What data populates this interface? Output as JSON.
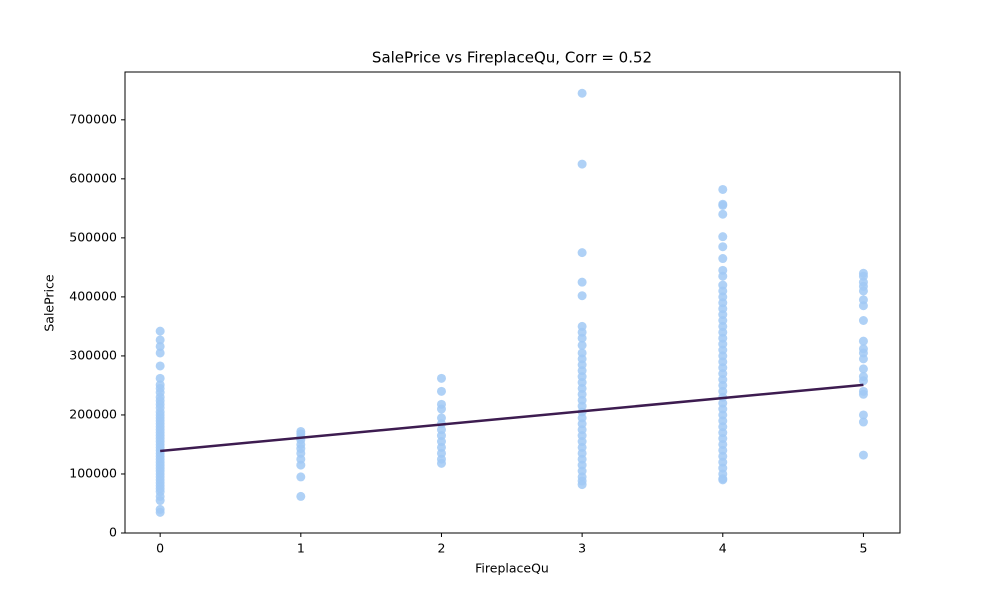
{
  "chart_data": {
    "type": "scatter",
    "title": "SalePrice vs FireplaceQu, Corr = 0.52",
    "x_label": "FireplaceQu",
    "y_label": "SalePrice",
    "xlim": [
      -0.25,
      5.26
    ],
    "ylim": [
      0,
      781000
    ],
    "xticks": [
      0,
      1,
      2,
      3,
      4,
      5
    ],
    "yticks": [
      0,
      100000,
      200000,
      300000,
      400000,
      500000,
      600000,
      700000
    ],
    "color": "#a1c9f4",
    "x": [
      0,
      0,
      0,
      0,
      0,
      0,
      0,
      0,
      0,
      0,
      0,
      0,
      0,
      0,
      0,
      0,
      0,
      0,
      0,
      0,
      0,
      0,
      0,
      0,
      0,
      0,
      0,
      0,
      0,
      0,
      0,
      0,
      0,
      0,
      0,
      0,
      0,
      0,
      0,
      0,
      0,
      0,
      0,
      0,
      0,
      1,
      1,
      1,
      1,
      1,
      1,
      1,
      1,
      1,
      1,
      1,
      2,
      2,
      2,
      2,
      2,
      2,
      2,
      2,
      2,
      2,
      2,
      2,
      2,
      3,
      3,
      3,
      3,
      3,
      3,
      3,
      3,
      3,
      3,
      3,
      3,
      3,
      3,
      3,
      3,
      3,
      3,
      3,
      3,
      3,
      3,
      3,
      3,
      3,
      3,
      3,
      3,
      3,
      3,
      3,
      3,
      3,
      4,
      4,
      4,
      4,
      4,
      4,
      4,
      4,
      4,
      4,
      4,
      4,
      4,
      4,
      4,
      4,
      4,
      4,
      4,
      4,
      4,
      4,
      4,
      4,
      4,
      4,
      4,
      4,
      4,
      4,
      4,
      4,
      4,
      4,
      4,
      4,
      4,
      4,
      4,
      4,
      4,
      4,
      4,
      4,
      5,
      5,
      5,
      5,
      5,
      5,
      5,
      5,
      5,
      5,
      5,
      5,
      5,
      5,
      5,
      5,
      5,
      5,
      5,
      5
    ],
    "values": [
      342000,
      327000,
      316000,
      305000,
      283000,
      262000,
      251000,
      245000,
      238000,
      230000,
      224000,
      218000,
      212000,
      205000,
      200000,
      195000,
      190000,
      185000,
      180000,
      175000,
      170000,
      165000,
      160000,
      155000,
      150000,
      145000,
      140000,
      135000,
      130000,
      125000,
      120000,
      115000,
      110000,
      105000,
      100000,
      95000,
      90000,
      85000,
      80000,
      75000,
      70000,
      62000,
      55000,
      40000,
      35000,
      172000,
      168000,
      163000,
      158000,
      150000,
      143000,
      135000,
      125000,
      115000,
      95000,
      62000,
      262000,
      240000,
      218000,
      210000,
      195000,
      185000,
      175000,
      165000,
      155000,
      145000,
      135000,
      125000,
      118000,
      745000,
      625000,
      475000,
      425000,
      402000,
      350000,
      340000,
      330000,
      318000,
      305000,
      295000,
      285000,
      275000,
      265000,
      255000,
      245000,
      235000,
      225000,
      215000,
      205000,
      195000,
      185000,
      175000,
      165000,
      155000,
      145000,
      135000,
      125000,
      115000,
      105000,
      95000,
      88000,
      82000,
      582000,
      557000,
      555000,
      540000,
      502000,
      485000,
      465000,
      445000,
      435000,
      420000,
      410000,
      400000,
      390000,
      380000,
      370000,
      360000,
      350000,
      340000,
      330000,
      320000,
      310000,
      300000,
      290000,
      280000,
      270000,
      260000,
      250000,
      240000,
      230000,
      220000,
      210000,
      200000,
      190000,
      180000,
      170000,
      160000,
      150000,
      140000,
      130000,
      120000,
      110000,
      100000,
      92000,
      90000,
      440000,
      435000,
      425000,
      418000,
      410000,
      395000,
      385000,
      360000,
      325000,
      312000,
      305000,
      295000,
      278000,
      265000,
      258000,
      240000,
      235000,
      200000,
      188000,
      132000
    ],
    "regression": {
      "x": [
        0,
        5
      ],
      "values": [
        139000,
        251000
      ],
      "color": "#3d1c50"
    }
  }
}
